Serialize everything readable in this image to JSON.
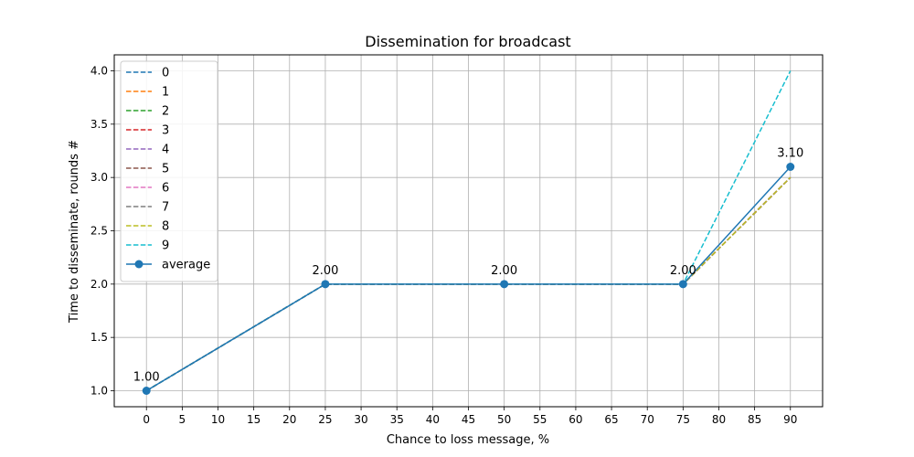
{
  "chart_data": {
    "type": "line",
    "title": "Dissemination for broadcast",
    "xlabel": "Chance to loss message, %",
    "ylabel": "Time to disseminate, rounds #",
    "xlim": [
      -4.5,
      94.5
    ],
    "ylim": [
      0.85,
      4.15
    ],
    "xticks": [
      0,
      5,
      10,
      15,
      20,
      25,
      30,
      35,
      40,
      45,
      50,
      55,
      60,
      65,
      70,
      75,
      80,
      85,
      90
    ],
    "xtick_labels": [
      "0",
      "5",
      "10",
      "15",
      "20",
      "25",
      "30",
      "35",
      "40",
      "45",
      "50",
      "55",
      "60",
      "65",
      "70",
      "75",
      "80",
      "85",
      "90"
    ],
    "yticks": [
      1.0,
      1.5,
      2.0,
      2.5,
      3.0,
      3.5,
      4.0
    ],
    "ytick_labels": [
      "1.0",
      "1.5",
      "2.0",
      "2.5",
      "3.0",
      "3.5",
      "4.0"
    ],
    "grid": true,
    "legend_position": "top-left",
    "x": [
      0,
      25,
      50,
      75,
      90
    ],
    "series": [
      {
        "name": "0",
        "values": [
          1,
          2,
          2,
          2,
          3
        ],
        "color": "#1f77b4",
        "style": "dashed"
      },
      {
        "name": "1",
        "values": [
          1,
          2,
          2,
          2,
          3
        ],
        "color": "#ff7f0e",
        "style": "dashed"
      },
      {
        "name": "2",
        "values": [
          1,
          2,
          2,
          2,
          3
        ],
        "color": "#2ca02c",
        "style": "dashed"
      },
      {
        "name": "3",
        "values": [
          1,
          2,
          2,
          2,
          3
        ],
        "color": "#d62728",
        "style": "dashed"
      },
      {
        "name": "4",
        "values": [
          1,
          2,
          2,
          2,
          3
        ],
        "color": "#9467bd",
        "style": "dashed"
      },
      {
        "name": "5",
        "values": [
          1,
          2,
          2,
          2,
          3
        ],
        "color": "#8c564b",
        "style": "dashed"
      },
      {
        "name": "6",
        "values": [
          1,
          2,
          2,
          2,
          3
        ],
        "color": "#e377c2",
        "style": "dashed"
      },
      {
        "name": "7",
        "values": [
          1,
          2,
          2,
          2,
          3
        ],
        "color": "#7f7f7f",
        "style": "dashed"
      },
      {
        "name": "8",
        "values": [
          1,
          2,
          2,
          2,
          3
        ],
        "color": "#bcbd22",
        "style": "dashed"
      },
      {
        "name": "9",
        "values": [
          1,
          2,
          2,
          2,
          4
        ],
        "color": "#17becf",
        "style": "dashed"
      },
      {
        "name": "average",
        "values": [
          1.0,
          2.0,
          2.0,
          2.0,
          3.1
        ],
        "color": "#1f77b4",
        "style": "solid",
        "marker": "circle"
      }
    ],
    "data_labels": [
      {
        "x": 0,
        "y": 1.0,
        "text": "1.00"
      },
      {
        "x": 25,
        "y": 2.0,
        "text": "2.00"
      },
      {
        "x": 50,
        "y": 2.0,
        "text": "2.00"
      },
      {
        "x": 75,
        "y": 2.0,
        "text": "2.00"
      },
      {
        "x": 90,
        "y": 3.1,
        "text": "3.10"
      }
    ]
  }
}
